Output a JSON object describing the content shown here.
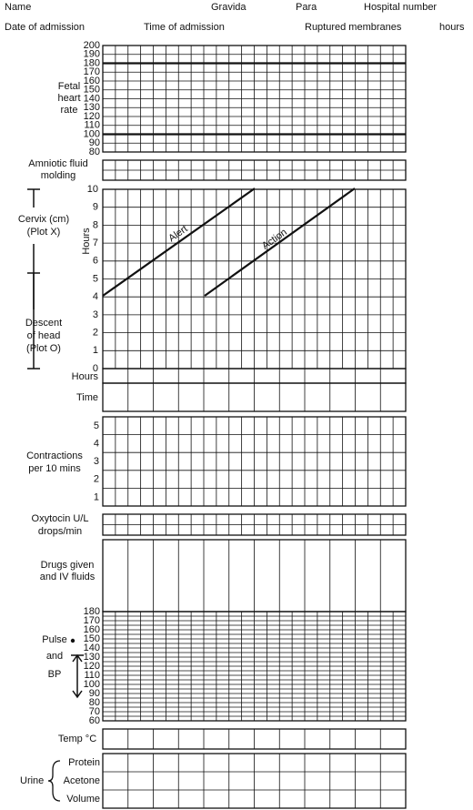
{
  "header": {
    "name": "Name",
    "gravida": "Gravida",
    "para": "Para",
    "hospital_number": "Hospital number",
    "date_of_admission": "Date of admission",
    "time_of_admission": "Time of admission",
    "ruptured_membranes": "Ruptured membranes",
    "hours": "hours"
  },
  "fetal_heart_rate": {
    "label": [
      "Fetal",
      "heart",
      "rate"
    ],
    "scale": [
      200,
      190,
      180,
      170,
      160,
      150,
      140,
      130,
      120,
      110,
      100,
      90,
      80
    ]
  },
  "amniotic_fluid": {
    "label": [
      "Amniotic fluid",
      "molding"
    ]
  },
  "cervix": {
    "label": [
      "Cervix (cm)",
      "(Plot X)"
    ],
    "descent_label": [
      "Descent",
      "of head",
      "(Plot O)"
    ],
    "axis_label": "Hours",
    "scale": [
      10,
      9,
      8,
      7,
      6,
      5,
      4,
      3,
      2,
      1,
      0
    ],
    "alert": "Alert",
    "action": "Action"
  },
  "hours_row": {
    "label": "Hours"
  },
  "time_row": {
    "label": "Time"
  },
  "contractions": {
    "label": [
      "Contractions",
      "per 10 mins"
    ],
    "scale": [
      5,
      4,
      3,
      2,
      1
    ]
  },
  "oxytocin": {
    "label": [
      "Oxytocin U/L",
      "drops/min"
    ]
  },
  "drugs": {
    "label": [
      "Drugs given",
      "and IV fluids"
    ]
  },
  "pulse_bp": {
    "pulse": "Pulse",
    "and": "and",
    "bp": "BP",
    "scale": [
      180,
      170,
      160,
      150,
      140,
      130,
      120,
      110,
      100,
      90,
      80,
      70,
      60
    ]
  },
  "temp": {
    "label": "Temp °C"
  },
  "urine": {
    "label": "Urine",
    "rows": [
      "Protein",
      "Acetone",
      "Volume"
    ]
  }
}
